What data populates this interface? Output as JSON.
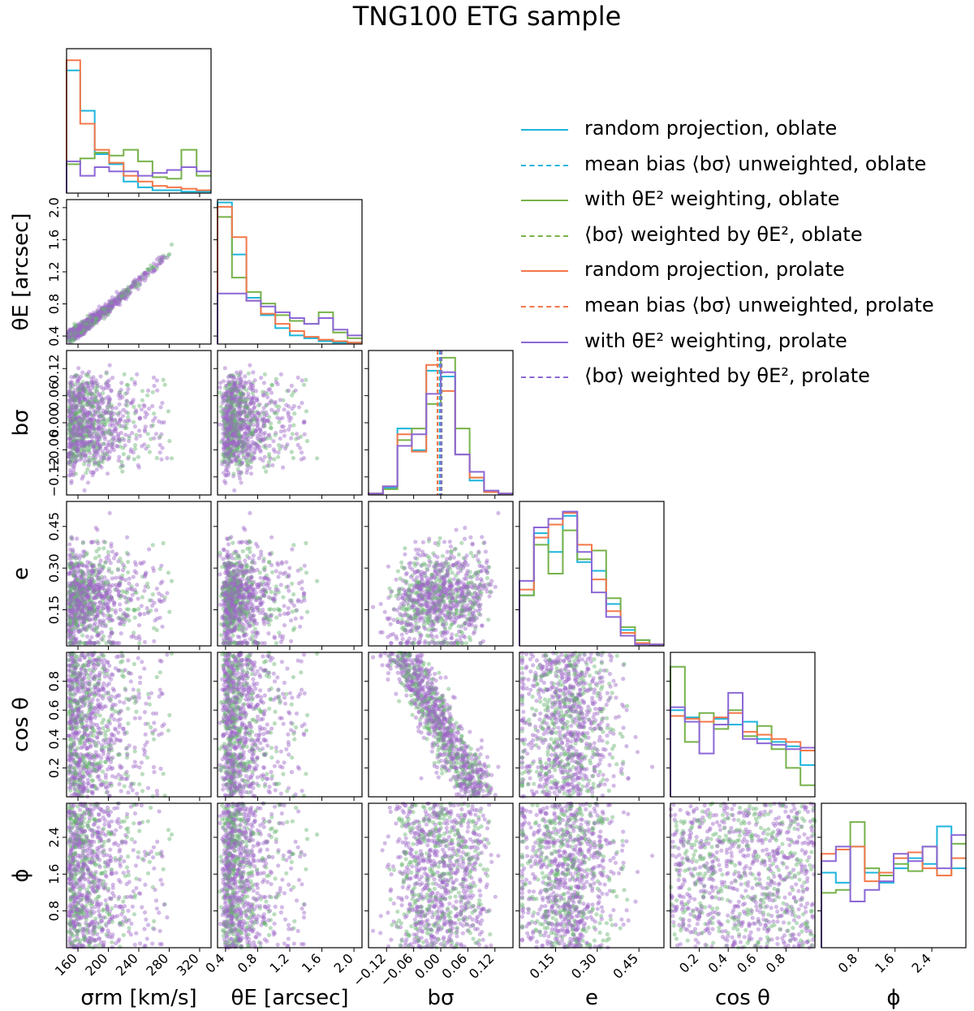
{
  "chart_data": {
    "type": "corner",
    "title": "TNG100 ETG sample",
    "colors": {
      "oblate_random": "#1cb5dc",
      "oblate_weighted": "#77b24a",
      "prolate_random": "#f4784a",
      "prolate_weighted": "#8c67d6",
      "scatter_green": "#66b36e",
      "scatter_purple": "#9d66c7"
    },
    "legend": [
      {
        "label": "random projection, oblate",
        "color": "#1cb5dc",
        "style": "solid"
      },
      {
        "label": "mean bias ⟨bσ⟩ unweighted, oblate",
        "color": "#1cb5dc",
        "style": "dashed"
      },
      {
        "label": "with θE² weighting, oblate",
        "color": "#77b24a",
        "style": "solid"
      },
      {
        "label": "⟨bσ⟩ weighted by θE², oblate",
        "color": "#77b24a",
        "style": "dashed"
      },
      {
        "label": "random projection, prolate",
        "color": "#f4784a",
        "style": "solid"
      },
      {
        "label": "mean bias ⟨bσ⟩ unweighted, prolate",
        "color": "#f4784a",
        "style": "dashed"
      },
      {
        "label": "with θE² weighting, prolate",
        "color": "#8c67d6",
        "style": "solid"
      },
      {
        "label": "⟨bσ⟩ weighted by θE², prolate",
        "color": "#8c67d6",
        "style": "dashed"
      }
    ],
    "variables": [
      {
        "key": "sigma",
        "label": "σrm [km/s]",
        "range": [
          145,
          335
        ],
        "ticks": [
          160,
          200,
          240,
          280,
          320
        ],
        "tick_labels": [
          "160",
          "200",
          "240",
          "280",
          "320"
        ]
      },
      {
        "key": "thetaE",
        "label": "θE [arcsec]",
        "range": [
          0.3,
          2.1
        ],
        "ticks": [
          0.4,
          0.8,
          1.2,
          1.6,
          2.0
        ],
        "tick_labels": [
          "0.4",
          "0.8",
          "1.2",
          "1.6",
          "2.0"
        ]
      },
      {
        "key": "bsigma",
        "label": "bσ",
        "range": [
          -0.16,
          0.16
        ],
        "ticks": [
          -0.12,
          -0.06,
          0.0,
          0.06,
          0.12
        ],
        "tick_labels": [
          "−0.12",
          "−0.06",
          "0.00",
          "0.06",
          "0.12"
        ]
      },
      {
        "key": "e",
        "label": "e",
        "range": [
          0.02,
          0.54
        ],
        "ticks": [
          0.15,
          0.3,
          0.45
        ],
        "tick_labels": [
          "0.15",
          "0.30",
          "0.45"
        ]
      },
      {
        "key": "cos",
        "label": "cos θ",
        "range": [
          0.0,
          1.0
        ],
        "ticks": [
          0.2,
          0.4,
          0.6,
          0.8
        ],
        "tick_labels": [
          "0.2",
          "0.4",
          "0.6",
          "0.8"
        ]
      },
      {
        "key": "phi",
        "label": "ϕ",
        "range": [
          0.0,
          3.14
        ],
        "ticks": [
          0.8,
          1.6,
          2.4
        ],
        "tick_labels": [
          "0.8",
          "1.6",
          "2.4"
        ]
      }
    ],
    "histograms": [
      {
        "bins": [
          145,
          163,
          182,
          201,
          220,
          239,
          258,
          277,
          296,
          316,
          335
        ],
        "series": [
          {
            "name": "random projection, oblate",
            "color": "#1cb5dc",
            "values": [
              0.85,
              0.57,
              0.27,
              0.2,
              0.08,
              0.04,
              0.02,
              0.02,
              0.01,
              0.01
            ]
          },
          {
            "name": "with θE² weighting, oblate",
            "color": "#77b24a",
            "values": [
              0.2,
              0.24,
              0.28,
              0.26,
              0.3,
              0.22,
              0.11,
              0.1,
              0.3,
              0.12
            ]
          },
          {
            "name": "random projection, prolate",
            "color": "#f4784a",
            "values": [
              0.92,
              0.48,
              0.3,
              0.21,
              0.12,
              0.08,
              0.05,
              0.04,
              0.03,
              0.02
            ]
          },
          {
            "name": "with θE² weighting, prolate",
            "color": "#8c67d6",
            "values": [
              0.22,
              0.12,
              0.18,
              0.15,
              0.15,
              0.12,
              0.14,
              0.16,
              0.18,
              0.15
            ]
          }
        ]
      },
      {
        "bins": [
          0.3,
          0.48,
          0.66,
          0.84,
          1.02,
          1.2,
          1.38,
          1.56,
          1.74,
          1.92,
          2.1
        ],
        "series": [
          {
            "name": "random projection, oblate",
            "color": "#1cb5dc",
            "values": [
              0.98,
              0.62,
              0.32,
              0.2,
              0.11,
              0.06,
              0.04,
              0.02,
              0.01,
              0.01
            ]
          },
          {
            "name": "with θE² weighting, oblate",
            "color": "#77b24a",
            "values": [
              0.88,
              0.46,
              0.36,
              0.28,
              0.2,
              0.16,
              0.14,
              0.22,
              0.08,
              0.04
            ]
          },
          {
            "name": "random projection, prolate",
            "color": "#f4784a",
            "values": [
              0.95,
              0.74,
              0.3,
              0.21,
              0.14,
              0.09,
              0.05,
              0.03,
              0.02,
              0.01
            ]
          },
          {
            "name": "with θE² weighting, prolate",
            "color": "#8c67d6",
            "values": [
              0.35,
              0.35,
              0.3,
              0.26,
              0.22,
              0.18,
              0.14,
              0.18,
              0.1,
              0.06
            ]
          }
        ]
      },
      {
        "bins": [
          -0.16,
          -0.128,
          -0.096,
          -0.064,
          -0.032,
          0.0,
          0.032,
          0.064,
          0.096,
          0.128,
          0.16
        ],
        "series": [
          {
            "name": "random projection, oblate",
            "color": "#1cb5dc",
            "values": [
              0.01,
              0.05,
              0.46,
              0.31,
              0.86,
              0.82,
              0.28,
              0.1,
              0.02,
              0.01
            ]
          },
          {
            "name": "with θE² weighting, oblate",
            "color": "#77b24a",
            "values": [
              0.01,
              0.04,
              0.38,
              0.46,
              0.63,
              0.95,
              0.46,
              0.12,
              0.02,
              0.01
            ]
          },
          {
            "name": "random projection, prolate",
            "color": "#f4784a",
            "values": [
              0.01,
              0.06,
              0.42,
              0.3,
              0.9,
              0.72,
              0.28,
              0.12,
              0.02,
              0.01
            ]
          },
          {
            "name": "with θE² weighting, prolate",
            "color": "#8c67d6",
            "values": [
              0.01,
              0.06,
              0.34,
              0.42,
              0.7,
              0.85,
              0.28,
              0.16,
              0.03,
              0.01
            ]
          }
        ],
        "vlines": [
          {
            "name": "mean bias ⟨bσ⟩ unweighted, oblate",
            "color": "#1cb5dc",
            "x": -0.002
          },
          {
            "name": "⟨bσ⟩ weighted by θE², oblate",
            "color": "#77b24a",
            "x": 0.002
          },
          {
            "name": "mean bias ⟨bσ⟩ unweighted, prolate",
            "color": "#f4784a",
            "x": -0.007
          },
          {
            "name": "⟨bσ⟩ weighted by θE², prolate",
            "color": "#8c67d6",
            "x": 0.001
          }
        ]
      },
      {
        "bins": [
          0.02,
          0.072,
          0.124,
          0.176,
          0.228,
          0.28,
          0.332,
          0.384,
          0.436,
          0.488,
          0.54
        ],
        "series": [
          {
            "name": "random projection, oblate",
            "color": "#1cb5dc",
            "values": [
              0.35,
              0.78,
              0.65,
              0.9,
              0.58,
              0.52,
              0.29,
              0.11,
              0.04,
              0.01
            ]
          },
          {
            "name": "with θE² weighting, oblate",
            "color": "#77b24a",
            "values": [
              0.35,
              0.7,
              0.5,
              0.8,
              0.6,
              0.66,
              0.33,
              0.13,
              0.04,
              0.01
            ]
          },
          {
            "name": "random projection, prolate",
            "color": "#f4784a",
            "values": [
              0.39,
              0.75,
              0.84,
              0.92,
              0.7,
              0.46,
              0.24,
              0.09,
              0.02,
              0.01
            ]
          },
          {
            "name": "with θE² weighting, prolate",
            "color": "#8c67d6",
            "values": [
              0.45,
              0.82,
              0.88,
              0.93,
              0.65,
              0.37,
              0.2,
              0.07,
              0.01,
              0.01
            ]
          }
        ]
      },
      {
        "bins": [
          0.0,
          0.1,
          0.2,
          0.3,
          0.4,
          0.5,
          0.6,
          0.7,
          0.8,
          0.9,
          1.0
        ],
        "series": [
          {
            "name": "random projection, oblate",
            "color": "#1cb5dc",
            "values": [
              0.6,
              0.55,
              0.52,
              0.54,
              0.5,
              0.52,
              0.4,
              0.38,
              0.35,
              0.22
            ]
          },
          {
            "name": "with θE² weighting, oblate",
            "color": "#77b24a",
            "values": [
              0.9,
              0.38,
              0.58,
              0.47,
              0.6,
              0.42,
              0.49,
              0.33,
              0.2,
              0.08
            ]
          },
          {
            "name": "random projection, prolate",
            "color": "#f4784a",
            "values": [
              0.56,
              0.54,
              0.52,
              0.55,
              0.58,
              0.45,
              0.43,
              0.4,
              0.38,
              0.32
            ]
          },
          {
            "name": "with θE² weighting, prolate",
            "color": "#8c67d6",
            "values": [
              0.62,
              0.52,
              0.3,
              0.5,
              0.72,
              0.4,
              0.37,
              0.36,
              0.33,
              0.34
            ]
          }
        ]
      },
      {
        "bins": [
          0.0,
          0.314,
          0.628,
          0.942,
          1.256,
          1.57,
          1.884,
          2.198,
          2.512,
          2.826,
          3.14
        ],
        "series": [
          {
            "name": "random projection, oblate",
            "color": "#1cb5dc",
            "values": [
              0.52,
              0.45,
              0.7,
              0.52,
              0.45,
              0.55,
              0.62,
              0.58,
              0.84,
              0.55
            ]
          },
          {
            "name": "with θE² weighting, oblate",
            "color": "#77b24a",
            "values": [
              0.38,
              0.4,
              0.87,
              0.55,
              0.5,
              0.58,
              0.53,
              0.7,
              0.5,
              0.72
            ]
          },
          {
            "name": "random projection, prolate",
            "color": "#f4784a",
            "values": [
              0.65,
              0.68,
              0.7,
              0.46,
              0.52,
              0.62,
              0.66,
              0.55,
              0.5,
              0.62
            ]
          },
          {
            "name": "with θE² weighting, prolate",
            "color": "#8c67d6",
            "values": [
              0.6,
              0.7,
              0.32,
              0.4,
              0.46,
              0.65,
              0.6,
              0.7,
              0.55,
              0.78
            ]
          }
        ]
      }
    ],
    "scatter": {
      "n_points_per_panel": 1000,
      "population_fraction_weighted": 0.35,
      "alpha": 0.45,
      "relations": {
        "thetaE_vs_sigma": "tight increasing (θE ≈ 0.4 at σ=150 to ≈1.9 at σ=330)",
        "cos_vs_bsigma": "strong anticorrelation (cos θ ≈ 0.95 at bσ≈−0.1 to ≈0.05 at bσ≈0.08)",
        "cos_vs_e": "weak anticorrelation",
        "bsigma_vs_e": "weak positive correlation",
        "phi_vs_bsigma": "hourglass shape centered on bσ≈−0.02"
      }
    }
  }
}
